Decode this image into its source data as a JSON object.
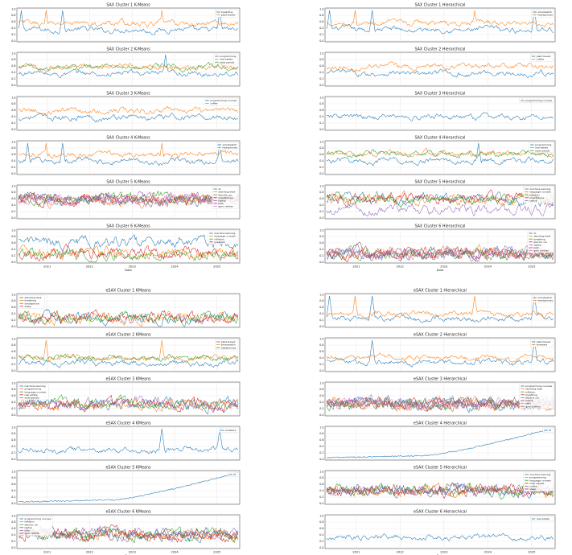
{
  "figure": {
    "x_tick_labels": [
      "2021",
      "2022",
      "2023",
      "2024",
      "2025"
    ],
    "x_axis_label": "Date",
    "y_tick_labels": [
      "0.0",
      "0.2",
      "0.4",
      "0.6",
      "0.8",
      "1.0"
    ]
  },
  "chart_data": [
    {
      "type": "line",
      "title": "SAX Cluster 1 K-Means",
      "ylim": [
        0,
        1
      ],
      "grid": true,
      "legend": "top-right",
      "series": [
        {
          "name": "breathing",
          "color": "#1f77b4",
          "peaks": [
            3,
            48,
            219
          ]
        },
        {
          "name": "plant based",
          "color": "#ff7f0e",
          "peaks": [
            30,
            156
          ]
        }
      ]
    },
    {
      "type": "line",
      "title": "SAX Cluster 1 Hierarchical",
      "ylim": [
        0,
        1
      ],
      "grid": true,
      "legend": "top-right",
      "series": [
        {
          "name": "smartwatch",
          "color": "#1f77b4",
          "peaks": [
            3,
            48,
            219
          ]
        },
        {
          "name": "headphones",
          "color": "#ff7f0e",
          "peaks": [
            30,
            156
          ]
        }
      ]
    },
    {
      "type": "line",
      "title": "SAX Cluster 2 K-Means",
      "ylim": [
        0,
        1
      ],
      "grid": true,
      "legend": "top-right",
      "series": [
        {
          "name": "programming",
          "color": "#1f77b4",
          "peaks": [
            160
          ]
        },
        {
          "name": "real estate",
          "color": "#ff7f0e",
          "peaks": []
        },
        {
          "name": "solar panels",
          "color": "#2ca02c",
          "peaks": []
        }
      ]
    },
    {
      "type": "line",
      "title": "SAX Cluster 2 Hierarchical",
      "ylim": [
        0,
        1
      ],
      "grid": true,
      "legend": "top-right",
      "series": [
        {
          "name": "plant based",
          "color": "#1f77b4",
          "peaks": []
        },
        {
          "name": "coffee",
          "color": "#ff7f0e",
          "peaks": []
        }
      ]
    },
    {
      "type": "line",
      "title": "SAX Cluster 3 K-Means",
      "ylim": [
        0,
        1
      ],
      "grid": true,
      "legend": "top-right",
      "series": [
        {
          "name": "programming courses",
          "color": "#1f77b4",
          "peaks": []
        },
        {
          "name": "coffee",
          "color": "#ff7f0e",
          "peaks": []
        }
      ]
    },
    {
      "type": "line",
      "title": "SAX Cluster 3 Hierarchical",
      "ylim": [
        0,
        1
      ],
      "grid": true,
      "legend": "top-right",
      "series": [
        {
          "name": "programming courses",
          "color": "#1f77b4",
          "peaks": []
        }
      ]
    },
    {
      "type": "line",
      "title": "SAX Cluster 4 K-Means",
      "ylim": [
        0,
        1
      ],
      "grid": true,
      "legend": "top-right",
      "series": [
        {
          "name": "smartwatch",
          "color": "#1f77b4",
          "peaks": [
            10,
            48,
            219
          ]
        },
        {
          "name": "headphones",
          "color": "#ff7f0e",
          "peaks": [
            30,
            156
          ]
        }
      ]
    },
    {
      "type": "line",
      "title": "SAX Cluster 4 Hierarchical",
      "ylim": [
        0,
        1
      ],
      "grid": true,
      "legend": "top-right",
      "series": [
        {
          "name": "programming",
          "color": "#1f77b4",
          "peaks": [
            160
          ]
        },
        {
          "name": "real estate",
          "color": "#ff7f0e",
          "peaks": []
        },
        {
          "name": "solar panels",
          "color": "#2ca02c",
          "peaks": []
        }
      ]
    },
    {
      "type": "line",
      "title": "SAX Cluster 5 K-Means",
      "ylim": [
        0,
        1
      ],
      "grid": true,
      "legend": "top-right",
      "series": [
        {
          "name": "AI",
          "color": "#1f77b4",
          "peaks": []
        },
        {
          "name": "standing desk",
          "color": "#ff7f0e",
          "peaks": []
        },
        {
          "name": "electric car",
          "color": "#2ca02c",
          "peaks": []
        },
        {
          "name": "smartphone",
          "color": "#d62728",
          "peaks": []
        },
        {
          "name": "laptop",
          "color": "#9467bd",
          "peaks": []
        },
        {
          "name": "keto",
          "color": "#8c564b",
          "peaks": []
        },
        {
          "name": "gym clothes",
          "color": "#e377c2",
          "peaks": []
        }
      ]
    },
    {
      "type": "line",
      "title": "SAX Cluster 5 Hierarchical",
      "ylim": [
        0,
        1
      ],
      "grid": true,
      "legend": "top-right",
      "series": [
        {
          "name": "machine learning",
          "color": "#1f77b4",
          "peaks": []
        },
        {
          "name": "language courses",
          "color": "#ff7f0e",
          "peaks": []
        },
        {
          "name": "inflation",
          "color": "#2ca02c",
          "peaks": []
        },
        {
          "name": "smartphone",
          "color": "#d62728",
          "peaks": []
        },
        {
          "name": "laptop",
          "color": "#9467bd",
          "peaks": []
        }
      ]
    },
    {
      "type": "line",
      "title": "SAX Cluster 6 K-Means",
      "ylim": [
        0,
        1
      ],
      "grid": true,
      "legend": "top-right",
      "series": [
        {
          "name": "machine learning",
          "color": "#1f77b4",
          "peaks": []
        },
        {
          "name": "language courses",
          "color": "#ff7f0e",
          "peaks": []
        },
        {
          "name": "inflation",
          "color": "#2ca02c",
          "peaks": []
        },
        {
          "name": "sneakers",
          "color": "#d62728",
          "peaks": []
        }
      ]
    },
    {
      "type": "line",
      "title": "SAX Cluster 6 Hierarchical",
      "ylim": [
        0,
        1
      ],
      "grid": true,
      "legend": "top-right",
      "series": [
        {
          "name": "AI",
          "color": "#1f77b4",
          "peaks": []
        },
        {
          "name": "standing desk",
          "color": "#ff7f0e",
          "peaks": []
        },
        {
          "name": "breathing",
          "color": "#2ca02c",
          "peaks": []
        },
        {
          "name": "electric car",
          "color": "#d62728",
          "peaks": []
        },
        {
          "name": "laptop",
          "color": "#9467bd",
          "peaks": []
        },
        {
          "name": "keto",
          "color": "#8c564b",
          "peaks": []
        },
        {
          "name": "gym clothes",
          "color": "#e377c2",
          "peaks": []
        }
      ]
    },
    {
      "type": "line",
      "title": "eSAX Cluster 1 KMeans",
      "ylim": [
        0,
        1
      ],
      "grid": true,
      "legend": "top-left",
      "series": [
        {
          "name": "standing desk",
          "color": "#1f77b4",
          "peaks": []
        },
        {
          "name": "breathing",
          "color": "#ff7f0e",
          "peaks": []
        },
        {
          "name": "smartphone",
          "color": "#2ca02c",
          "peaks": []
        },
        {
          "name": "sleep",
          "color": "#d62728",
          "peaks": []
        }
      ]
    },
    {
      "type": "line",
      "title": "eSAX Cluster 1 Hierarchical",
      "ylim": [
        0,
        1
      ],
      "grid": true,
      "legend": "top-right",
      "series": [
        {
          "name": "smartwatch",
          "color": "#1f77b4",
          "peaks": [
            3,
            48,
            219
          ]
        },
        {
          "name": "headphones",
          "color": "#ff7f0e",
          "peaks": [
            30,
            156
          ]
        }
      ]
    },
    {
      "type": "line",
      "title": "eSAX Cluster 2 KMeans",
      "ylim": [
        0,
        1
      ],
      "grid": true,
      "legend": "top-right",
      "series": [
        {
          "name": "plant based",
          "color": "#1f77b4",
          "peaks": []
        },
        {
          "name": "smartwatch",
          "color": "#ff7f0e",
          "peaks": [
            30,
            156
          ]
        },
        {
          "name": "headphones",
          "color": "#2ca02c",
          "peaks": []
        }
      ]
    },
    {
      "type": "line",
      "title": "eSAX Cluster 2 Hierarchical",
      "ylim": [
        0,
        1
      ],
      "grid": true,
      "legend": "top-right",
      "series": [
        {
          "name": "plant based",
          "color": "#1f77b4",
          "peaks": [
            48,
            219
          ]
        },
        {
          "name": "sneakers",
          "color": "#ff7f0e",
          "peaks": []
        }
      ]
    },
    {
      "type": "line",
      "title": "eSAX Cluster 3 KMeans",
      "ylim": [
        0,
        1
      ],
      "grid": true,
      "legend": "top-left",
      "series": [
        {
          "name": "machine learning",
          "color": "#1f77b4",
          "peaks": []
        },
        {
          "name": "programming",
          "color": "#ff7f0e",
          "peaks": []
        },
        {
          "name": "language courses",
          "color": "#2ca02c",
          "peaks": []
        },
        {
          "name": "real estate",
          "color": "#d62728",
          "peaks": []
        },
        {
          "name": "solar panels",
          "color": "#9467bd",
          "peaks": []
        }
      ]
    },
    {
      "type": "line",
      "title": "eSAX Cluster 3 Hierarchical",
      "ylim": [
        0,
        1
      ],
      "grid": true,
      "legend": "top-right",
      "series": [
        {
          "name": "programming courses",
          "color": "#1f77b4",
          "peaks": []
        },
        {
          "name": "standing desk",
          "color": "#ff7f0e",
          "peaks": []
        },
        {
          "name": "inflation",
          "color": "#2ca02c",
          "peaks": []
        },
        {
          "name": "breathing",
          "color": "#d62728",
          "peaks": []
        },
        {
          "name": "electric car",
          "color": "#9467bd",
          "peaks": []
        },
        {
          "name": "laptop",
          "color": "#8c564b",
          "peaks": []
        },
        {
          "name": "keto",
          "color": "#e377c2",
          "peaks": []
        },
        {
          "name": "gym clothes",
          "color": "#7f7f7f",
          "peaks": []
        }
      ]
    },
    {
      "type": "line",
      "title": "eSAX Cluster 4 KMeans",
      "ylim": [
        0,
        1
      ],
      "grid": true,
      "legend": "top-right",
      "series": [
        {
          "name": "sneakers",
          "color": "#1f77b4",
          "peaks": [
            156,
            219
          ]
        }
      ]
    },
    {
      "type": "line",
      "title": "eSAX Cluster 4 Hierarchical",
      "ylim": [
        0,
        1
      ],
      "grid": true,
      "legend": "top-right",
      "series": [
        {
          "name": "AI",
          "color": "#1f77b4",
          "peaks": []
        }
      ]
    },
    {
      "type": "line",
      "title": "eSAX Cluster 5 KMeans",
      "ylim": [
        0,
        1
      ],
      "grid": true,
      "legend": "top-right",
      "series": [
        {
          "name": "AI",
          "color": "#1f77b4",
          "peaks": []
        }
      ]
    },
    {
      "type": "line",
      "title": "eSAX Cluster 5 Hierarchical",
      "ylim": [
        0,
        1
      ],
      "grid": true,
      "legend": "top-right",
      "series": [
        {
          "name": "machine learning",
          "color": "#1f77b4",
          "peaks": []
        },
        {
          "name": "programming",
          "color": "#ff7f0e",
          "peaks": []
        },
        {
          "name": "language courses",
          "color": "#2ca02c",
          "peaks": []
        },
        {
          "name": "solar panels",
          "color": "#d62728",
          "peaks": []
        },
        {
          "name": "coffee",
          "color": "#9467bd",
          "peaks": []
        },
        {
          "name": "sleep",
          "color": "#8c564b",
          "peaks": []
        }
      ]
    },
    {
      "type": "line",
      "title": "eSAX Cluster 6 KMeans",
      "ylim": [
        0,
        1
      ],
      "grid": true,
      "legend": "top-left",
      "series": [
        {
          "name": "programming courses",
          "color": "#1f77b4",
          "peaks": []
        },
        {
          "name": "inflation",
          "color": "#ff7f0e",
          "peaks": []
        },
        {
          "name": "electric car",
          "color": "#2ca02c",
          "peaks": []
        },
        {
          "name": "laptop",
          "color": "#d62728",
          "peaks": []
        },
        {
          "name": "keto",
          "color": "#9467bd",
          "peaks": []
        },
        {
          "name": "gym clothes",
          "color": "#8c564b",
          "peaks": []
        }
      ]
    },
    {
      "type": "line",
      "title": "eSAX Cluster 6 Hierarchical",
      "ylim": [
        0,
        1
      ],
      "grid": true,
      "legend": "top-right",
      "series": [
        {
          "name": "real estate",
          "color": "#1f77b4",
          "peaks": []
        }
      ]
    }
  ]
}
